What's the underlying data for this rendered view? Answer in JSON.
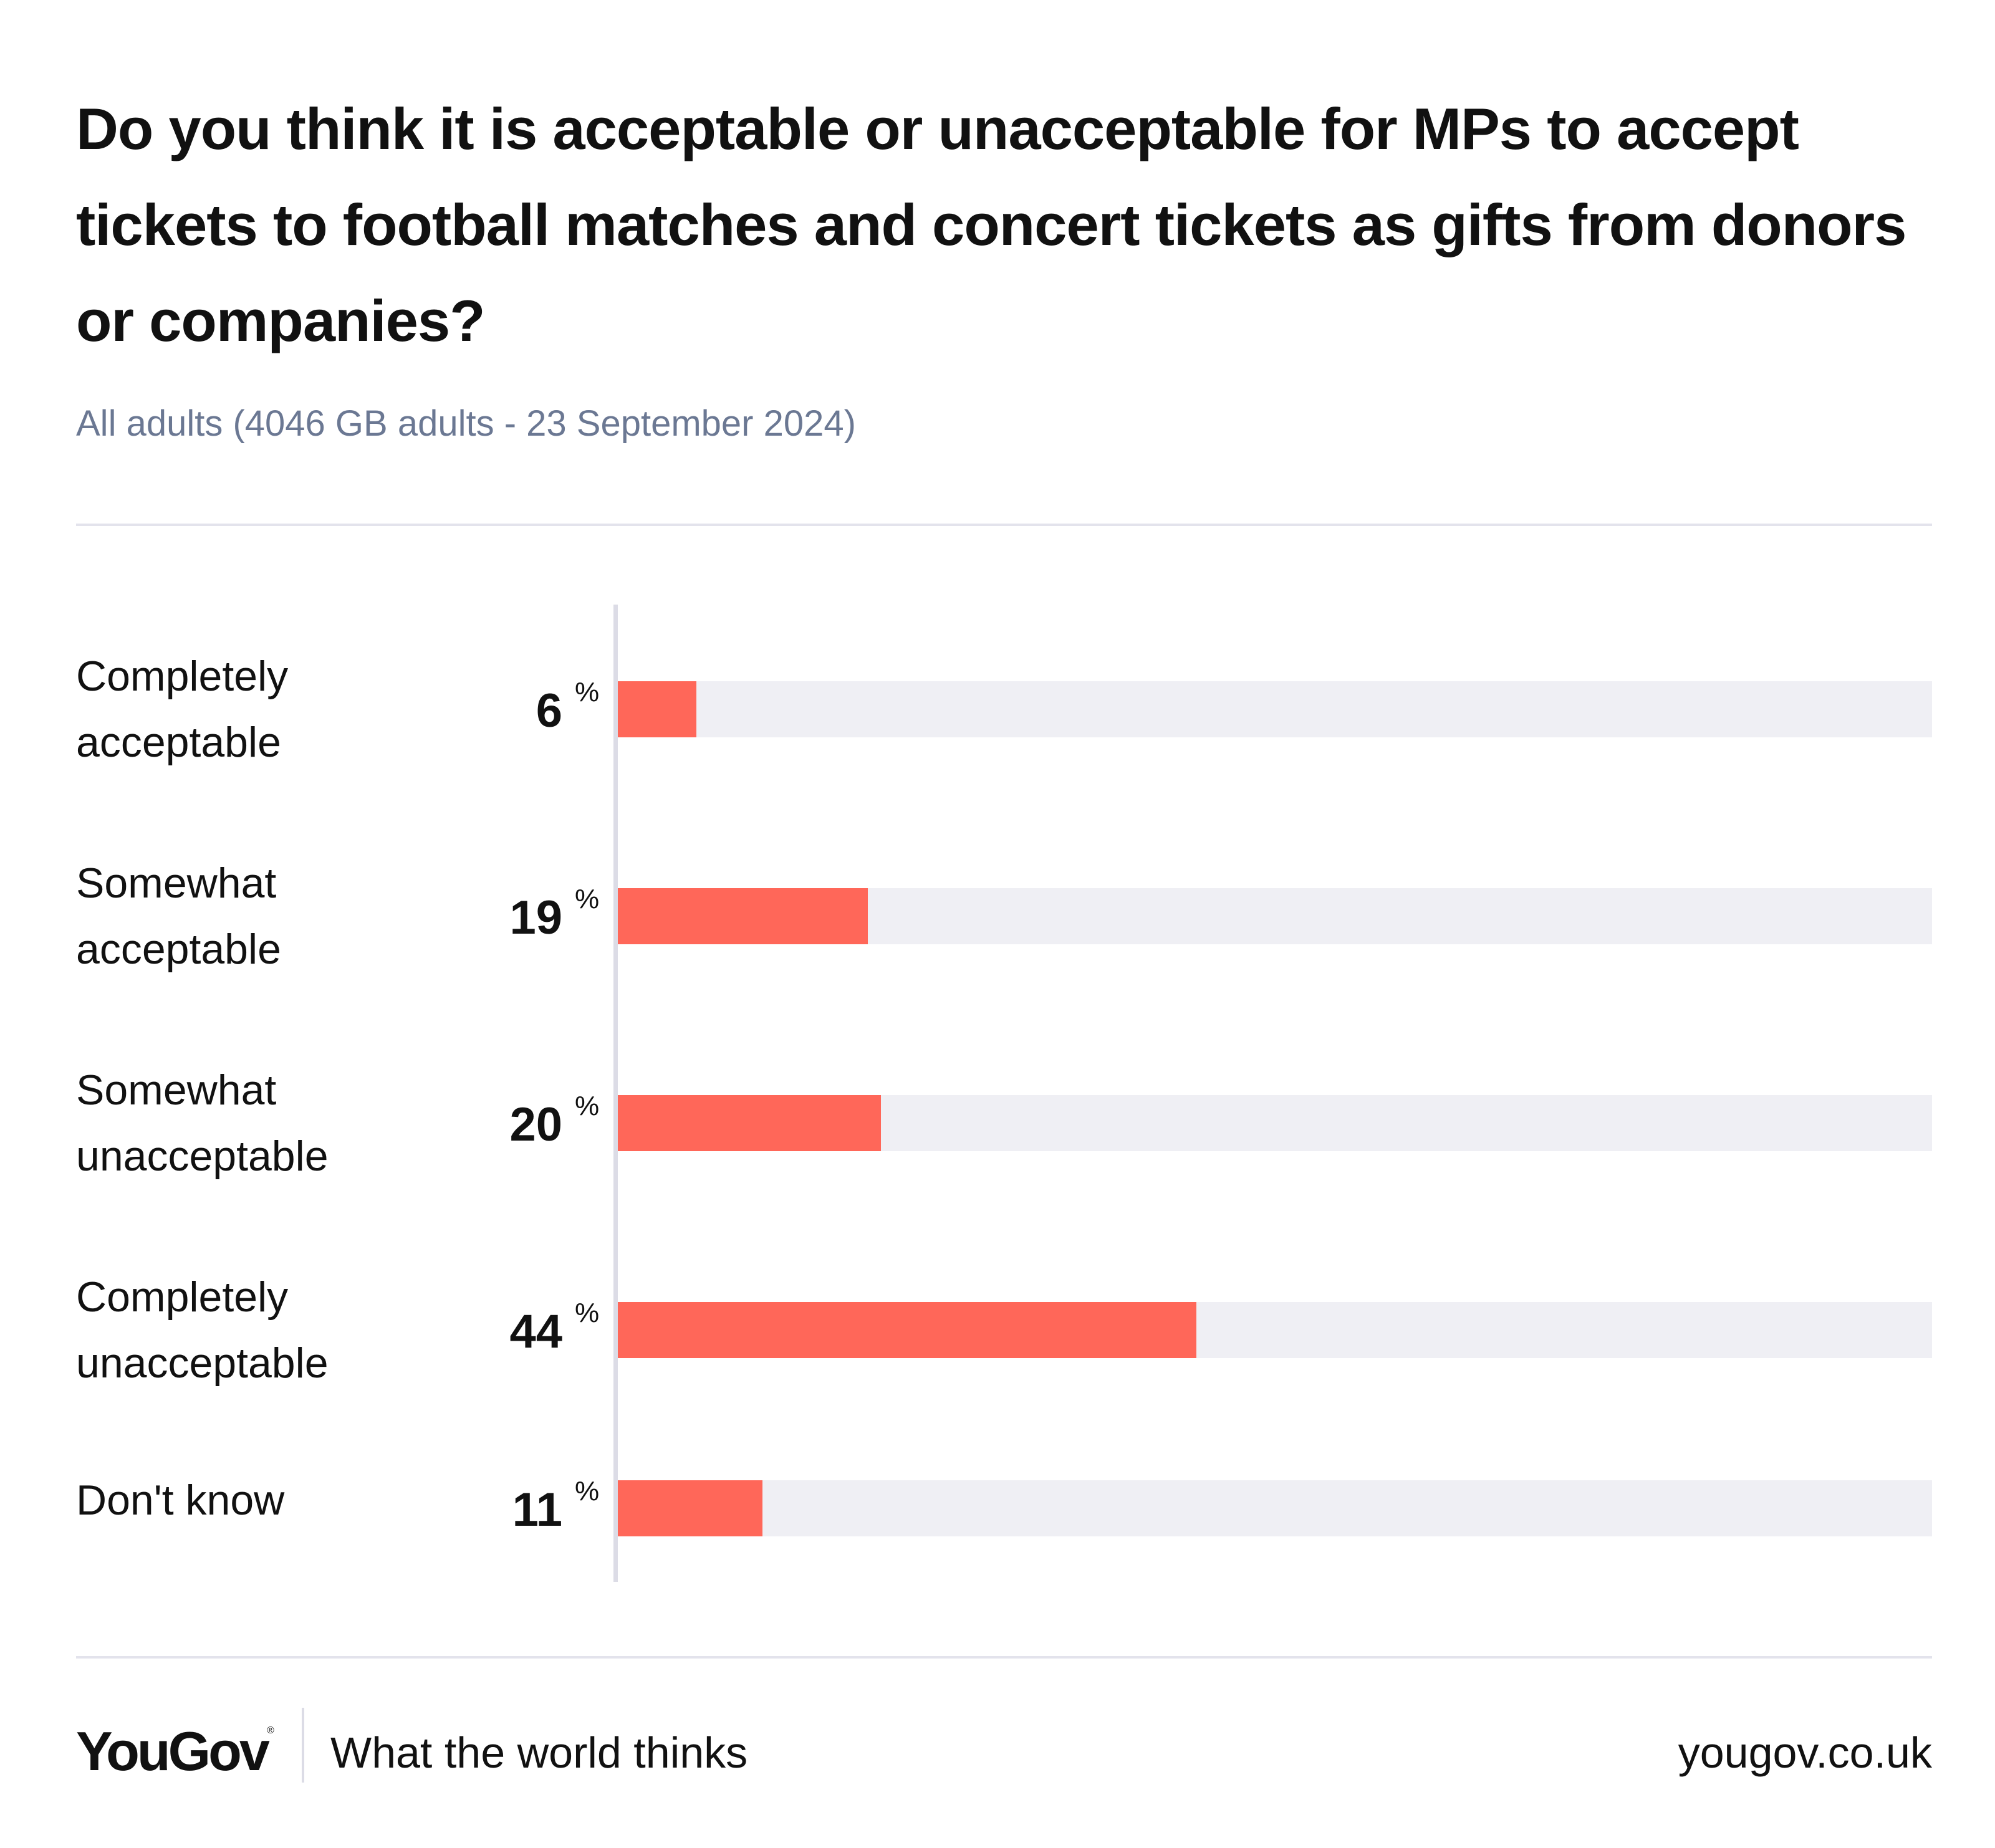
{
  "title": "Do you think it is acceptable or unacceptable for MPs to accept tickets to football matches and concert tickets as gifts from donors or companies?",
  "subtitle": "All adults (4046 GB adults - 23 September 2024)",
  "colors": {
    "bar": "#ff6759",
    "track": "#efeff4",
    "subtitle": "#6b7893"
  },
  "chart_data": {
    "type": "bar",
    "orientation": "horizontal",
    "categories": [
      "Completely acceptable",
      "Somewhat acceptable",
      "Somewhat unacceptable",
      "Completely unacceptable",
      "Don't know"
    ],
    "values": [
      6,
      19,
      20,
      44,
      11
    ],
    "value_suffix": "%",
    "xlim": [
      0,
      100
    ],
    "grid": false
  },
  "rows": [
    {
      "label_line1": "Completely",
      "label_line2": "acceptable",
      "value": "6"
    },
    {
      "label_line1": "Somewhat",
      "label_line2": "acceptable",
      "value": "19"
    },
    {
      "label_line1": "Somewhat",
      "label_line2": "unacceptable",
      "value": "20"
    },
    {
      "label_line1": "Completely",
      "label_line2": "unacceptable",
      "value": "44"
    },
    {
      "label_line1": "Don't know",
      "label_line2": "",
      "value": "11"
    }
  ],
  "percent_sign": "%",
  "footer": {
    "logo": "YouGov",
    "logo_mark": "®",
    "tagline": "What the world thinks",
    "site": "yougov.co.uk"
  }
}
